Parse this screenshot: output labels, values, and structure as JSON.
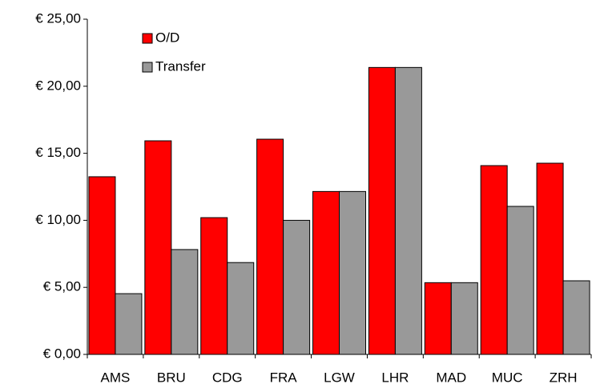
{
  "chart_data": {
    "type": "bar",
    "categories": [
      "AMS",
      "BRU",
      "CDG",
      "FRA",
      "LGW",
      "LHR",
      "MAD",
      "MUC",
      "ZRH"
    ],
    "series": [
      {
        "name": "O/D",
        "color": "#ff0000",
        "values": [
          13.25,
          15.93,
          10.2,
          16.05,
          12.15,
          21.4,
          5.35,
          14.08,
          14.26
        ]
      },
      {
        "name": "Transfer",
        "color": "#999999",
        "values": [
          4.53,
          7.82,
          6.85,
          10.0,
          12.15,
          21.4,
          5.35,
          11.04,
          5.49
        ]
      }
    ],
    "ylim": [
      0,
      25
    ],
    "yticks": [
      {
        "value": 0,
        "label": "€ 0,00"
      },
      {
        "value": 5,
        "label": "€ 5,00"
      },
      {
        "value": 10,
        "label": "€ 10,00"
      },
      {
        "value": 15,
        "label": "€ 15,00"
      },
      {
        "value": 20,
        "label": "€ 20,00"
      },
      {
        "value": 25,
        "label": "€ 25,00"
      }
    ],
    "grid": false
  }
}
